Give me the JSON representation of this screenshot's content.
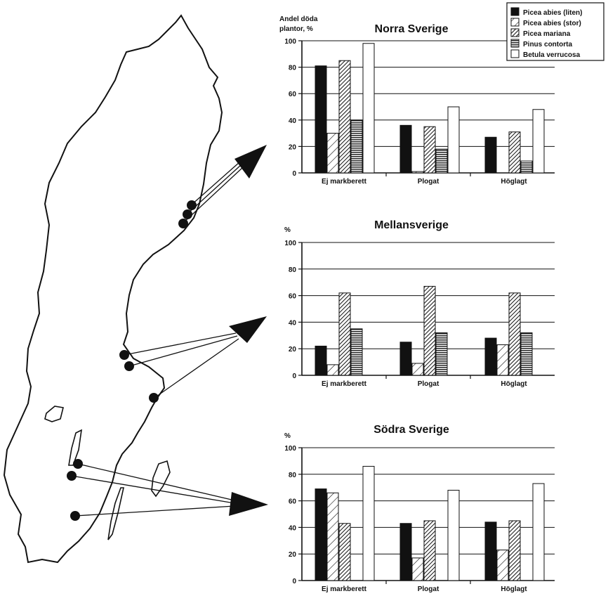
{
  "colors": {
    "ink": "#111111",
    "paper": "#ffffff"
  },
  "legend": {
    "placement": "top-right",
    "items": [
      {
        "label": "Picea abies (liten)",
        "fill": "solid"
      },
      {
        "label": "Picea abies (stor)",
        "fill": "hatch-light"
      },
      {
        "label": "Picea mariana",
        "fill": "hatch-dense"
      },
      {
        "label": "Pinus contorta",
        "fill": "horizontal"
      },
      {
        "label": "Betula verrucosa",
        "fill": "empty"
      }
    ]
  },
  "map": {
    "icon": "sweden-outline-map",
    "markers": "site-dot-icon",
    "arrows": "arrow-icon"
  },
  "chart_data": [
    {
      "type": "bar",
      "title": "Norra Sverige",
      "ylabel_lines": [
        "Andel döda",
        "plantor, %"
      ],
      "ylim": [
        0,
        100
      ],
      "yticks": [
        0,
        20,
        40,
        60,
        80,
        100
      ],
      "grid": true,
      "categories": [
        "Ej  markberett",
        "Plogat",
        "Höglagt"
      ],
      "series": [
        {
          "name": "Picea abies (liten)",
          "values": [
            81,
            36,
            27
          ]
        },
        {
          "name": "Picea abies (stor)",
          "values": [
            30,
            1,
            0
          ]
        },
        {
          "name": "Picea mariana",
          "values": [
            85,
            35,
            31
          ]
        },
        {
          "name": "Pinus contorta",
          "values": [
            40,
            18,
            9
          ]
        },
        {
          "name": "Betula verrucosa",
          "values": [
            98,
            50,
            48
          ]
        }
      ]
    },
    {
      "type": "bar",
      "title": "Mellansverige",
      "ylabel_lines": [
        "%"
      ],
      "ylim": [
        0,
        100
      ],
      "yticks": [
        0,
        20,
        40,
        60,
        80,
        100
      ],
      "grid": true,
      "categories": [
        "Ej  markberett",
        "Plogat",
        "Höglagt"
      ],
      "series": [
        {
          "name": "Picea abies (liten)",
          "values": [
            22,
            25,
            28
          ]
        },
        {
          "name": "Picea abies (stor)",
          "values": [
            8,
            9,
            23
          ]
        },
        {
          "name": "Picea mariana",
          "values": [
            62,
            67,
            62
          ]
        },
        {
          "name": "Pinus contorta",
          "values": [
            35,
            32,
            32
          ]
        },
        {
          "name": "Betula verrucosa",
          "values": [
            0,
            0,
            0
          ]
        }
      ]
    },
    {
      "type": "bar",
      "title": "Södra Sverige",
      "ylabel_lines": [
        "%"
      ],
      "ylim": [
        0,
        100
      ],
      "yticks": [
        0,
        20,
        40,
        60,
        80,
        100
      ],
      "grid": true,
      "categories": [
        "Ej  markberett",
        "Plogat",
        "Höglagt"
      ],
      "series": [
        {
          "name": "Picea abies (liten)",
          "values": [
            69,
            43,
            44
          ]
        },
        {
          "name": "Picea abies (stor)",
          "values": [
            66,
            17,
            23
          ]
        },
        {
          "name": "Picea mariana",
          "values": [
            43,
            45,
            45
          ]
        },
        {
          "name": "Pinus contorta",
          "values": [
            0,
            0,
            0
          ]
        },
        {
          "name": "Betula verrucosa",
          "values": [
            86,
            68,
            73
          ]
        }
      ]
    }
  ]
}
